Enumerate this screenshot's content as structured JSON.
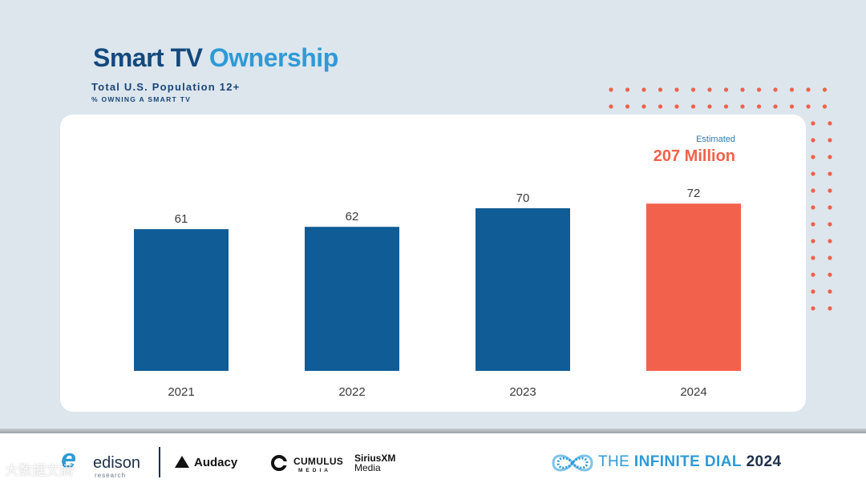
{
  "title": {
    "part1": "Smart TV",
    "part2": "Ownership"
  },
  "subtitle": "Total U.S. Population 12+",
  "caption": "% OWNING A SMART TV",
  "estimate": {
    "label": "Estimated",
    "value": "207 Million"
  },
  "colors": {
    "primary": "#0f5c96",
    "highlight": "#f2614b",
    "accent": "#2f9ad6",
    "title_dark": "#14497d",
    "dots": "#f06249"
  },
  "chart_data": {
    "type": "bar",
    "title": "Smart TV Ownership",
    "subtitle": "Total U.S. Population 12+",
    "ylabel": "% OWNING A SMART TV",
    "xlabel": "",
    "categories": [
      "2021",
      "2022",
      "2023",
      "2024"
    ],
    "values": [
      61,
      62,
      70,
      72
    ],
    "highlight_index": 3,
    "ylim": [
      0,
      100
    ],
    "grid": false,
    "annotation": "Estimated 207 Million"
  },
  "footer": {
    "edison": {
      "mark": "e",
      "name": "edison",
      "sub": "research"
    },
    "audacy": "Audacy",
    "cumulus": {
      "name": "CUMULUS",
      "sub": "MEDIA"
    },
    "sirius": {
      "line1": "SiriusXM",
      "line2": "Media"
    },
    "dial": {
      "part1": "THE ",
      "part2": "INFINITE DIAL",
      "part3": "2024"
    }
  },
  "watermark": "大数据文摘"
}
